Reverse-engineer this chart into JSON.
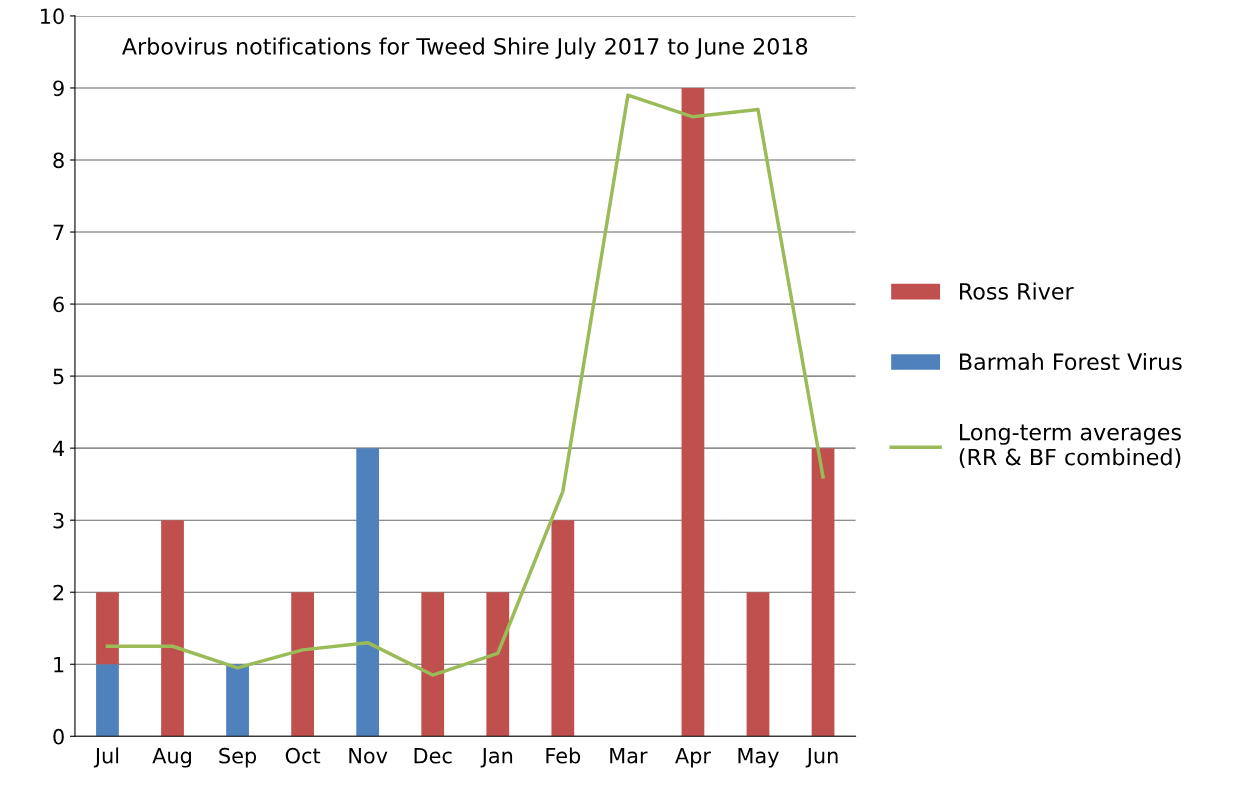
{
  "chart_data": {
    "type": "bar",
    "title": "Arbovirus notifications for Tweed Shire July 2017 to June 2018",
    "categories": [
      "Jul",
      "Aug",
      "Sep",
      "Oct",
      "Nov",
      "Dec",
      "Jan",
      "Feb",
      "Mar",
      "Apr",
      "May",
      "Jun"
    ],
    "stacked": true,
    "series": [
      {
        "name": "Barmah Forest Virus",
        "color": "#4f81bd",
        "values": [
          1,
          0,
          1,
          0,
          4,
          0,
          0,
          0,
          0,
          0,
          0,
          0
        ]
      },
      {
        "name": "Ross River",
        "color": "#c0504d",
        "values": [
          1,
          3,
          0,
          2,
          0,
          2,
          2,
          3,
          0,
          9,
          2,
          4
        ]
      },
      {
        "name": "Long-term averages\n(RR & BF combined)",
        "type": "line",
        "color": "#9bbb59",
        "values": [
          1.25,
          1.25,
          0.95,
          1.2,
          1.3,
          0.85,
          1.15,
          3.4,
          8.9,
          8.6,
          8.7,
          3.6
        ]
      }
    ],
    "ylim": [
      0,
      10
    ],
    "yticks": [
      0,
      1,
      2,
      3,
      4,
      5,
      6,
      7,
      8,
      9,
      10
    ],
    "grid": "y",
    "legend": "right",
    "marker": "none",
    "line_style": "solid"
  }
}
